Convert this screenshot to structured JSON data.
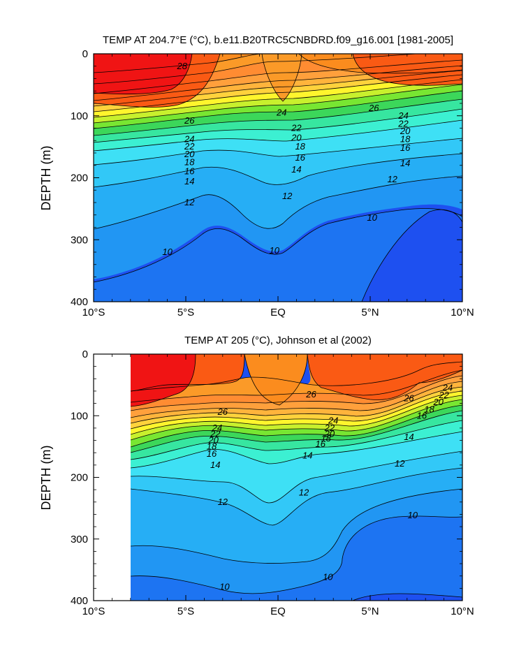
{
  "chart_data": [
    {
      "type": "contour",
      "title": "TEMP AT 204.7°E (°C), b.e11.B20TRC5CNBDRD.f09_g16.001 [1981-2005]",
      "xlabel": "",
      "ylabel": "DEPTH (m)",
      "xlim": [
        -10,
        10
      ],
      "ylim": [
        400,
        0
      ],
      "x_ticks": [
        -10,
        -5,
        0,
        5,
        10
      ],
      "x_tick_labels": [
        "10°S",
        "5°S",
        "EQ",
        "5°N",
        "10°N"
      ],
      "y_ticks": [
        0,
        100,
        200,
        300,
        400
      ],
      "y_tick_labels": [
        "0",
        "100",
        "200",
        "300",
        "400"
      ],
      "data_lon_range": [
        -10,
        10
      ],
      "contour_levels": [
        9,
        10,
        11,
        12,
        13,
        14,
        15,
        16,
        17,
        18,
        19,
        20,
        21,
        22,
        23,
        24,
        25,
        26,
        27,
        28
      ],
      "contour_labels": [
        {
          "text": "28",
          "x": -5.2,
          "y": 20
        },
        {
          "text": "26",
          "x": -4.8,
          "y": 108
        },
        {
          "text": "24",
          "x": 0.2,
          "y": 95
        },
        {
          "text": "26",
          "x": 5.2,
          "y": 88
        },
        {
          "text": "24",
          "x": -4.8,
          "y": 138
        },
        {
          "text": "22",
          "x": -4.8,
          "y": 150
        },
        {
          "text": "20",
          "x": -4.8,
          "y": 162
        },
        {
          "text": "18",
          "x": -4.8,
          "y": 175
        },
        {
          "text": "16",
          "x": -4.8,
          "y": 190
        },
        {
          "text": "14",
          "x": -4.8,
          "y": 206
        },
        {
          "text": "12",
          "x": -4.8,
          "y": 240
        },
        {
          "text": "10",
          "x": -6.0,
          "y": 320
        },
        {
          "text": "22",
          "x": 1.0,
          "y": 120
        },
        {
          "text": "20",
          "x": 1.0,
          "y": 136
        },
        {
          "text": "18",
          "x": 1.2,
          "y": 150
        },
        {
          "text": "16",
          "x": 1.2,
          "y": 168
        },
        {
          "text": "14",
          "x": 1.0,
          "y": 187
        },
        {
          "text": "12",
          "x": 0.5,
          "y": 230
        },
        {
          "text": "10",
          "x": -0.2,
          "y": 318
        },
        {
          "text": "24",
          "x": 6.8,
          "y": 100
        },
        {
          "text": "22",
          "x": 6.8,
          "y": 113
        },
        {
          "text": "20",
          "x": 6.9,
          "y": 125
        },
        {
          "text": "18",
          "x": 6.9,
          "y": 138
        },
        {
          "text": "16",
          "x": 6.9,
          "y": 152
        },
        {
          "text": "14",
          "x": 6.9,
          "y": 177
        },
        {
          "text": "12",
          "x": 6.2,
          "y": 203
        },
        {
          "text": "10",
          "x": 5.1,
          "y": 265
        }
      ]
    },
    {
      "type": "contour",
      "title": "TEMP AT 205 (°C), Johnson et al (2002)",
      "xlabel": "",
      "ylabel": "DEPTH (m)",
      "xlim": [
        -10,
        10
      ],
      "ylim": [
        400,
        0
      ],
      "x_ticks": [
        -10,
        -5,
        0,
        5,
        10
      ],
      "x_tick_labels": [
        "10°S",
        "5°S",
        "EQ",
        "5°N",
        "10°N"
      ],
      "y_ticks": [
        0,
        100,
        200,
        300,
        400
      ],
      "y_tick_labels": [
        "0",
        "100",
        "200",
        "300",
        "400"
      ],
      "data_lon_range": [
        -8,
        10
      ],
      "contour_levels": [
        9,
        10,
        11,
        12,
        13,
        14,
        15,
        16,
        17,
        18,
        19,
        20,
        21,
        22,
        23,
        24,
        25,
        26,
        27,
        28
      ],
      "contour_labels": [
        {
          "text": "26",
          "x": -3.0,
          "y": 94
        },
        {
          "text": "24",
          "x": -3.3,
          "y": 120
        },
        {
          "text": "22",
          "x": -3.4,
          "y": 130
        },
        {
          "text": "20",
          "x": -3.5,
          "y": 140
        },
        {
          "text": "18",
          "x": -3.6,
          "y": 150
        },
        {
          "text": "16",
          "x": -3.6,
          "y": 162
        },
        {
          "text": "14",
          "x": -3.4,
          "y": 180
        },
        {
          "text": "12",
          "x": -3.0,
          "y": 240
        },
        {
          "text": "10",
          "x": -2.9,
          "y": 378
        },
        {
          "text": "26",
          "x": 1.8,
          "y": 66
        },
        {
          "text": "24",
          "x": 3.0,
          "y": 108
        },
        {
          "text": "22",
          "x": 2.8,
          "y": 120
        },
        {
          "text": "20",
          "x": 2.8,
          "y": 130
        },
        {
          "text": "18",
          "x": 2.6,
          "y": 137
        },
        {
          "text": "16",
          "x": 2.3,
          "y": 146
        },
        {
          "text": "14",
          "x": 1.6,
          "y": 165
        },
        {
          "text": "12",
          "x": 1.4,
          "y": 225
        },
        {
          "text": "10",
          "x": 2.7,
          "y": 362
        },
        {
          "text": "26",
          "x": 7.1,
          "y": 72
        },
        {
          "text": "24",
          "x": 9.2,
          "y": 55
        },
        {
          "text": "22",
          "x": 9.0,
          "y": 67
        },
        {
          "text": "20",
          "x": 8.7,
          "y": 78
        },
        {
          "text": "18",
          "x": 8.2,
          "y": 90
        },
        {
          "text": "16",
          "x": 7.8,
          "y": 100
        },
        {
          "text": "14",
          "x": 7.1,
          "y": 135
        },
        {
          "text": "12",
          "x": 6.6,
          "y": 178
        },
        {
          "text": "10",
          "x": 7.3,
          "y": 262
        }
      ]
    }
  ]
}
